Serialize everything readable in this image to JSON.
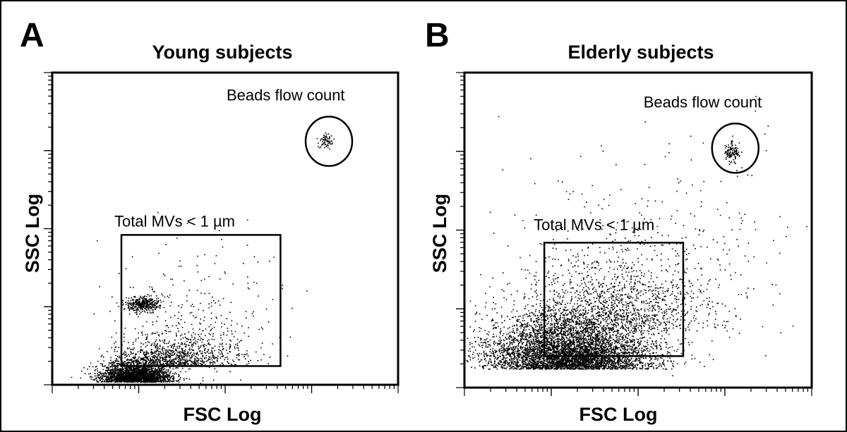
{
  "chart_data": [
    {
      "type": "scatter",
      "panel": "A",
      "title": "Young subjects",
      "xlabel": "FSC Log",
      "ylabel": "SSC Log",
      "x_scale": "log",
      "y_scale": "log",
      "x_decades": 4,
      "y_decades": 4,
      "gates": [
        {
          "name": "Total MVs < 1 µm",
          "shape": "rectangle",
          "x_range": [
            0.2,
            0.66
          ],
          "y_range": [
            0.06,
            0.48
          ]
        },
        {
          "name": "Beads flow count",
          "shape": "ellipse",
          "center": [
            0.8,
            0.78
          ]
        }
      ],
      "populations": [
        {
          "x": 0.24,
          "y": 0.01,
          "sx": 0.05,
          "sy": 0.03,
          "n": 2600
        },
        {
          "x": 0.36,
          "y": 0.06,
          "sx": 0.09,
          "sy": 0.05,
          "n": 900
        },
        {
          "x": 0.26,
          "y": 0.26,
          "sx": 0.025,
          "sy": 0.012,
          "n": 380
        },
        {
          "x": 0.42,
          "y": 0.2,
          "sx": 0.12,
          "sy": 0.12,
          "n": 260
        },
        {
          "x": 0.79,
          "y": 0.78,
          "sx": 0.01,
          "sy": 0.012,
          "n": 70
        }
      ]
    },
    {
      "type": "scatter",
      "panel": "B",
      "title": "Elderly subjects",
      "xlabel": "FSC Log",
      "ylabel": "SSC Log",
      "x_scale": "log",
      "y_scale": "log",
      "x_decades": 4,
      "y_decades": 4,
      "gates": [
        {
          "name": "Total MVs < 1 µm",
          "shape": "rectangle",
          "x_range": [
            0.23,
            0.63
          ],
          "y_range": [
            0.1,
            0.46
          ]
        },
        {
          "name": "Beads flow count",
          "shape": "ellipse",
          "center": [
            0.78,
            0.76
          ]
        }
      ],
      "populations": [
        {
          "x": 0.3,
          "y": 0.06,
          "sx": 0.12,
          "sy": 0.08,
          "n": 5200
        },
        {
          "x": 0.43,
          "y": 0.18,
          "sx": 0.14,
          "sy": 0.13,
          "n": 1300
        },
        {
          "x": 0.6,
          "y": 0.45,
          "sx": 0.2,
          "sy": 0.18,
          "n": 260
        },
        {
          "x": 0.77,
          "y": 0.75,
          "sx": 0.012,
          "sy": 0.016,
          "n": 120
        }
      ]
    }
  ]
}
